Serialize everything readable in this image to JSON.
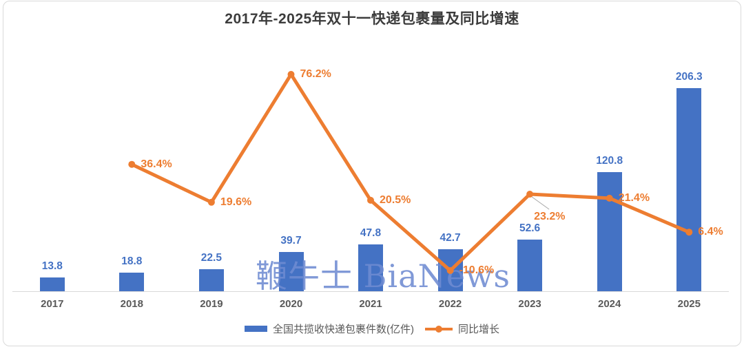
{
  "title": "2017年-2025年双十一快递包裹量及同比增速",
  "watermark": "鞭牛士 BiaNews",
  "chart_data": {
    "type": "bar+line",
    "title": "2017年-2025年双十一快递包裹量及同比增速",
    "categories": [
      "2017",
      "2018",
      "2019",
      "2020",
      "2021",
      "2022",
      "2023",
      "2024",
      "2025"
    ],
    "series": [
      {
        "name": "全国共揽收快递包裹件数(亿件)",
        "type": "bar",
        "color": "#4472C4",
        "values": [
          13.8,
          18.8,
          22.5,
          39.7,
          47.8,
          42.7,
          52.6,
          120.8,
          206.3
        ],
        "value_labels": [
          "13.8",
          "18.8",
          "22.5",
          "39.7",
          "47.8",
          "42.7",
          "52.6",
          "120.8",
          "206.3"
        ]
      },
      {
        "name": "同比增长",
        "type": "line",
        "color": "#ED7D31",
        "unit": "%",
        "values": [
          null,
          36.4,
          19.6,
          76.2,
          20.5,
          -10.6,
          23.2,
          21.4,
          6.4
        ],
        "value_labels": [
          null,
          "36.4%",
          "19.6%",
          "76.2%",
          "20.5%",
          "-10.6%",
          "23.2%",
          "21.4%",
          "6.4%"
        ],
        "label_placement": [
          null,
          "right",
          "right",
          "right",
          "right",
          "right",
          "below-leader",
          "right",
          "right"
        ]
      }
    ],
    "xlabel": "",
    "ylabel": "",
    "grid": false,
    "legend_position": "bottom",
    "axes_visible": {
      "x_labels": true,
      "y_labels": false
    }
  },
  "legend": {
    "items": [
      {
        "label": "全国共揽收快递包裹件数(亿件)",
        "swatch": "bar",
        "color": "#4472C4"
      },
      {
        "label": "同比增长",
        "swatch": "line",
        "color": "#ED7D31"
      }
    ]
  },
  "colors": {
    "bar": "#4472C4",
    "line": "#ED7D31",
    "bar_label": "#4472C4",
    "pct_label": "#ED7D31",
    "title": "#3C3C3C",
    "axis_text": "#595959",
    "axis_line": "#D9D9D9",
    "leader_line": "#A6A6A6",
    "watermark": "#6E8BD1",
    "frame_border": "#D9D9D9"
  }
}
